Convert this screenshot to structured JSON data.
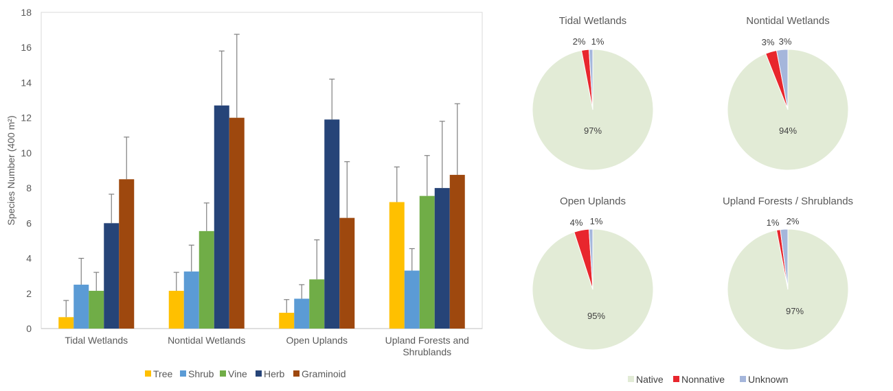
{
  "chart_data": [
    {
      "type": "bar",
      "ylabel": "Species Number (400 m²)",
      "ylim": [
        0,
        18
      ],
      "yticks": [
        0,
        2,
        4,
        6,
        8,
        10,
        12,
        14,
        16,
        18
      ],
      "categories": [
        "Tidal Wetlands",
        "Nontidal Wetlands",
        "Open Uplands",
        "Upland Forests and Shrublands"
      ],
      "legend_position": "bottom",
      "grid": false,
      "series": [
        {
          "name": "Tree",
          "color": "#FFC000",
          "values": [
            0.65,
            2.15,
            0.9,
            7.2
          ],
          "error": [
            0.95,
            1.05,
            0.75,
            2.0
          ]
        },
        {
          "name": "Shrub",
          "color": "#5B9BD5",
          "values": [
            2.5,
            3.25,
            1.7,
            3.3
          ],
          "error": [
            1.5,
            1.5,
            0.8,
            1.25
          ]
        },
        {
          "name": "Vine",
          "color": "#70AD47",
          "values": [
            2.15,
            5.55,
            2.8,
            7.55
          ],
          "error": [
            1.05,
            1.6,
            2.25,
            2.3
          ]
        },
        {
          "name": "Herb",
          "color": "#264478",
          "values": [
            6.0,
            12.7,
            11.9,
            8.0
          ],
          "error": [
            1.65,
            3.1,
            2.3,
            3.8
          ]
        },
        {
          "name": "Graminoid",
          "color": "#9E480E",
          "values": [
            8.5,
            12.0,
            6.3,
            8.75
          ],
          "error": [
            2.4,
            4.75,
            3.2,
            4.05
          ]
        }
      ]
    },
    {
      "type": "pie",
      "title": "Tidal Wetlands",
      "labels": [
        "Native",
        "Nonnative",
        "Unknown"
      ],
      "values": [
        97,
        2,
        1
      ],
      "value_labels": [
        "97%",
        "2%",
        "1%"
      ]
    },
    {
      "type": "pie",
      "title": "Nontidal Wetlands",
      "labels": [
        "Native",
        "Nonnative",
        "Unknown"
      ],
      "values": [
        94,
        3,
        3
      ],
      "value_labels": [
        "94%",
        "3%",
        "3%"
      ]
    },
    {
      "type": "pie",
      "title": "Open Uplands",
      "labels": [
        "Native",
        "Nonnative",
        "Unknown"
      ],
      "values": [
        95,
        4,
        1
      ],
      "value_labels": [
        "95%",
        "4%",
        "1%"
      ]
    },
    {
      "type": "pie",
      "title": "Upland Forests / Shrublands",
      "labels": [
        "Native",
        "Nonnative",
        "Unknown"
      ],
      "values": [
        97,
        1,
        2
      ],
      "value_labels": [
        "97%",
        "1%",
        "2%"
      ]
    }
  ],
  "pie_legend": [
    {
      "name": "Native",
      "color": "#E2EBD6"
    },
    {
      "name": "Nonnative",
      "color": "#E8262D"
    },
    {
      "name": "Unknown",
      "color": "#A5B6DB"
    }
  ]
}
